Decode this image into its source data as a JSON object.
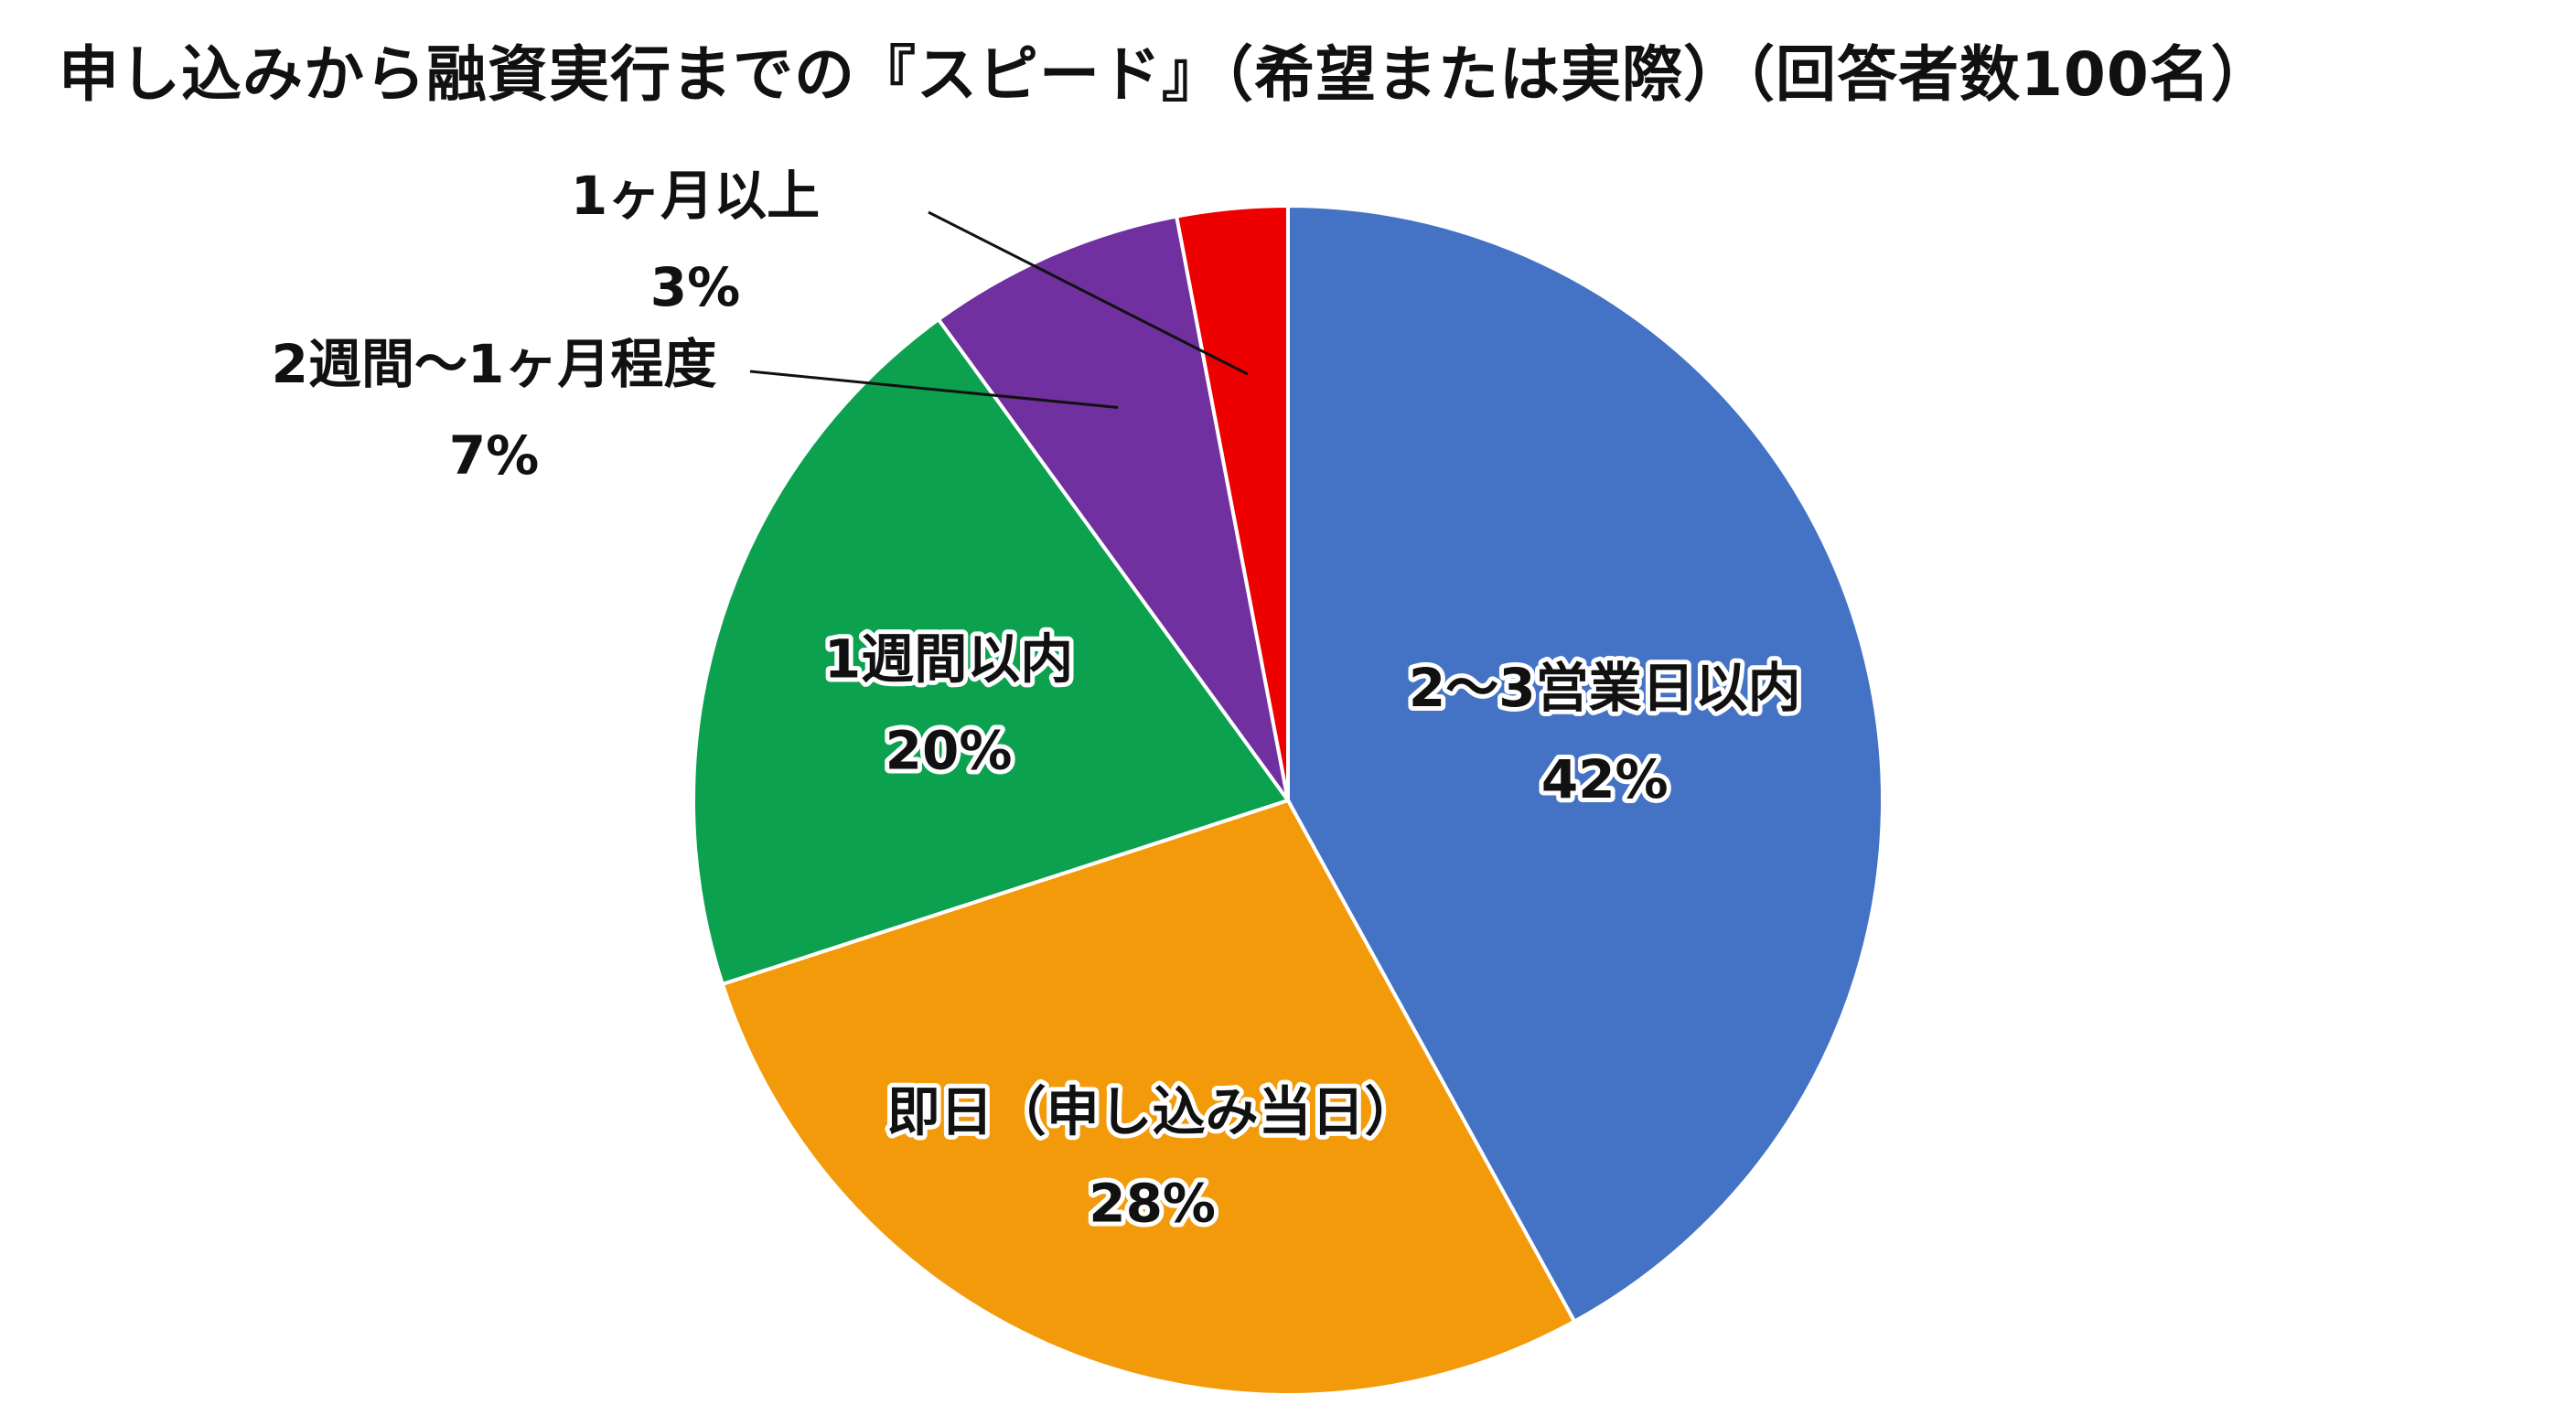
{
  "chart_data": {
    "type": "pie",
    "title": "申し込みから融資実行までの『スピード』（希望または実際）（回答者数100名）",
    "start_angle_deg": 0,
    "direction": "clockwise",
    "slices": [
      {
        "label": "2〜3営業日以内",
        "value": 42,
        "value_label": "42%",
        "color": "#4472C4",
        "label_position": "inside"
      },
      {
        "label": "即日（申し込み当日）",
        "value": 28,
        "value_label": "28%",
        "color": "#F39A0A",
        "label_position": "inside"
      },
      {
        "label": "1週間以内",
        "value": 20,
        "value_label": "20%",
        "color": "#0BA14E",
        "label_position": "inside"
      },
      {
        "label": "2週間〜1ヶ月程度",
        "value": 7,
        "value_label": "7%",
        "color": "#7030A0",
        "label_position": "outside"
      },
      {
        "label": "1ヶ月以上",
        "value": 3,
        "value_label": "3%",
        "color": "#EE0000",
        "label_position": "outside"
      }
    ]
  }
}
